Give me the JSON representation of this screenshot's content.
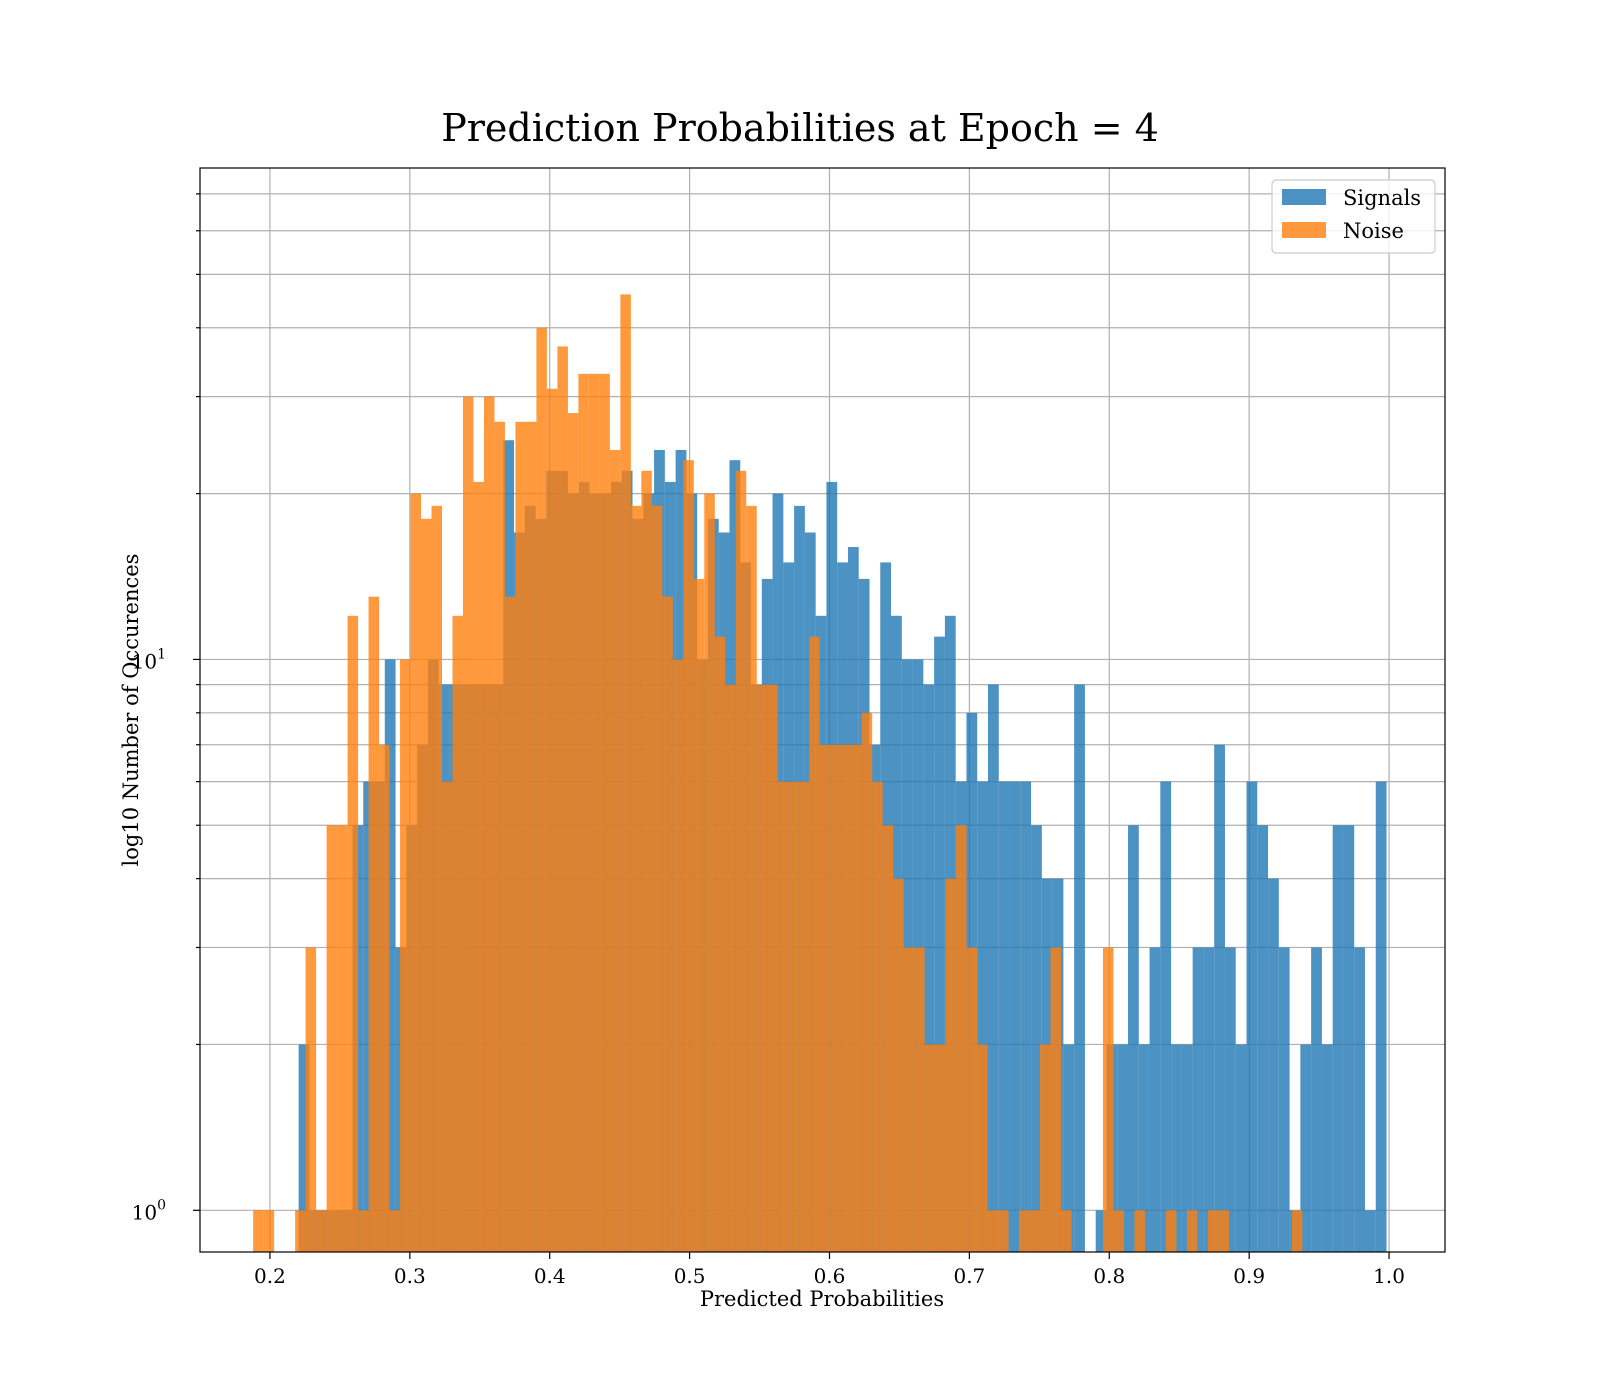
{
  "chart_data": {
    "type": "bar",
    "title": "Prediction Probabilities at Epoch = 4",
    "xlabel": "Predicted Probabilities",
    "ylabel": "log10 Number of Occurences",
    "yscale": "log",
    "xlim": [
      0.15,
      1.04
    ],
    "ylim": [
      0.84,
      78
    ],
    "x_ticks": [
      0.2,
      0.3,
      0.4,
      0.5,
      0.6,
      0.7,
      0.8,
      0.9,
      1.0
    ],
    "x_tick_labels": [
      "0.2",
      "0.3",
      "0.4",
      "0.5",
      "0.6",
      "0.7",
      "0.8",
      "0.9",
      "1.0"
    ],
    "y_major_ticks": [
      1,
      10
    ],
    "y_tick_labels": [
      {
        "base": "10",
        "exp": "0"
      },
      {
        "base": "10",
        "exp": "1"
      }
    ],
    "grid": true,
    "legend": "top-right",
    "bar_alpha": 0.8,
    "series": [
      {
        "name": "Signals",
        "color": "#1f77b4",
        "bins": [
          [
            0.2205,
            0.2282,
            2
          ],
          [
            0.2282,
            0.2359,
            1
          ],
          [
            0.2359,
            0.2436,
            1
          ],
          [
            0.2436,
            0.2513,
            1
          ],
          [
            0.2513,
            0.259,
            1
          ],
          [
            0.259,
            0.2667,
            5
          ],
          [
            0.2667,
            0.2744,
            6
          ],
          [
            0.2744,
            0.2821,
            6
          ],
          [
            0.2821,
            0.2898,
            10
          ],
          [
            0.2898,
            0.2975,
            3
          ],
          [
            0.2975,
            0.3052,
            5
          ],
          [
            0.3052,
            0.3129,
            7
          ],
          [
            0.3129,
            0.3206,
            10
          ],
          [
            0.3206,
            0.3283,
            9
          ],
          [
            0.3283,
            0.336,
            9
          ],
          [
            0.336,
            0.3437,
            9
          ],
          [
            0.3437,
            0.3514,
            9
          ],
          [
            0.3514,
            0.3591,
            9
          ],
          [
            0.3591,
            0.3668,
            9
          ],
          [
            0.3668,
            0.3745,
            25
          ],
          [
            0.3745,
            0.3822,
            17
          ],
          [
            0.3822,
            0.3899,
            19
          ],
          [
            0.3899,
            0.3976,
            18
          ],
          [
            0.3976,
            0.4053,
            22
          ],
          [
            0.4053,
            0.413,
            22
          ],
          [
            0.413,
            0.4207,
            20
          ],
          [
            0.4207,
            0.4284,
            21
          ],
          [
            0.4284,
            0.4361,
            20
          ],
          [
            0.4361,
            0.4438,
            20
          ],
          [
            0.4438,
            0.4515,
            21
          ],
          [
            0.4515,
            0.4592,
            22
          ],
          [
            0.4592,
            0.4669,
            18
          ],
          [
            0.4669,
            0.4746,
            20
          ],
          [
            0.4746,
            0.4823,
            24
          ],
          [
            0.4823,
            0.49,
            21
          ],
          [
            0.49,
            0.4977,
            24
          ],
          [
            0.4977,
            0.5054,
            20
          ],
          [
            0.5054,
            0.5131,
            10
          ],
          [
            0.5131,
            0.5208,
            18
          ],
          [
            0.5208,
            0.5285,
            17
          ],
          [
            0.5285,
            0.5362,
            23
          ],
          [
            0.5362,
            0.5439,
            15
          ],
          [
            0.5439,
            0.5516,
            9
          ],
          [
            0.5516,
            0.5593,
            14
          ],
          [
            0.5593,
            0.567,
            20
          ],
          [
            0.567,
            0.5747,
            15
          ],
          [
            0.5747,
            0.5824,
            19
          ],
          [
            0.5824,
            0.5901,
            17
          ],
          [
            0.5901,
            0.5978,
            12
          ],
          [
            0.5978,
            0.6055,
            21
          ],
          [
            0.6055,
            0.6132,
            15
          ],
          [
            0.6132,
            0.6209,
            16
          ],
          [
            0.6209,
            0.6286,
            14
          ],
          [
            0.6286,
            0.6363,
            7
          ],
          [
            0.6363,
            0.644,
            15
          ],
          [
            0.644,
            0.6517,
            12
          ],
          [
            0.6517,
            0.6594,
            10
          ],
          [
            0.6594,
            0.6671,
            10
          ],
          [
            0.6671,
            0.6748,
            9
          ],
          [
            0.6748,
            0.6825,
            11
          ],
          [
            0.6825,
            0.6902,
            12
          ],
          [
            0.6902,
            0.6979,
            6
          ],
          [
            0.6979,
            0.7056,
            8
          ],
          [
            0.7056,
            0.7133,
            6
          ],
          [
            0.7133,
            0.721,
            9
          ],
          [
            0.721,
            0.7287,
            6
          ],
          [
            0.7287,
            0.7364,
            6
          ],
          [
            0.7364,
            0.7441,
            6
          ],
          [
            0.7441,
            0.7518,
            5
          ],
          [
            0.7518,
            0.7595,
            4
          ],
          [
            0.7595,
            0.7672,
            4
          ],
          [
            0.7672,
            0.7749,
            2
          ],
          [
            0.7749,
            0.7826,
            9
          ],
          [
            0.7826,
            0.7903,
            0
          ],
          [
            0.7903,
            0.798,
            1
          ],
          [
            0.798,
            0.8057,
            2
          ],
          [
            0.8057,
            0.8134,
            2
          ],
          [
            0.8134,
            0.8211,
            5
          ],
          [
            0.8211,
            0.8288,
            2
          ],
          [
            0.8288,
            0.8365,
            3
          ],
          [
            0.8365,
            0.8442,
            6
          ],
          [
            0.8442,
            0.8519,
            2
          ],
          [
            0.8519,
            0.8596,
            2
          ],
          [
            0.8596,
            0.8673,
            3
          ],
          [
            0.8673,
            0.875,
            3
          ],
          [
            0.875,
            0.8827,
            7
          ],
          [
            0.8827,
            0.8904,
            3
          ],
          [
            0.8904,
            0.8981,
            2
          ],
          [
            0.8981,
            0.9058,
            6
          ],
          [
            0.9058,
            0.9135,
            5
          ],
          [
            0.9135,
            0.9212,
            4
          ],
          [
            0.9212,
            0.9289,
            3
          ],
          [
            0.9289,
            0.9366,
            1
          ],
          [
            0.9366,
            0.9443,
            2
          ],
          [
            0.9443,
            0.952,
            3
          ],
          [
            0.952,
            0.9597,
            2
          ],
          [
            0.9597,
            0.9674,
            5
          ],
          [
            0.9674,
            0.9751,
            5
          ],
          [
            0.9751,
            0.9828,
            3
          ],
          [
            0.9828,
            0.9905,
            1
          ],
          [
            0.9905,
            0.9982,
            6
          ]
        ]
      },
      {
        "name": "Noise",
        "color": "#ff7f0e",
        "bins": [
          [
            0.188,
            0.1955,
            1
          ],
          [
            0.1955,
            0.203,
            1
          ],
          [
            0.218,
            0.2255,
            1
          ],
          [
            0.2255,
            0.233,
            3
          ],
          [
            0.233,
            0.2405,
            1
          ],
          [
            0.2405,
            0.248,
            5
          ],
          [
            0.248,
            0.2555,
            5
          ],
          [
            0.2555,
            0.263,
            12
          ],
          [
            0.263,
            0.2705,
            1
          ],
          [
            0.2705,
            0.278,
            13
          ],
          [
            0.278,
            0.2855,
            7
          ],
          [
            0.2855,
            0.293,
            1
          ],
          [
            0.293,
            0.3005,
            10
          ],
          [
            0.3005,
            0.308,
            20
          ],
          [
            0.308,
            0.3155,
            18
          ],
          [
            0.3155,
            0.323,
            19
          ],
          [
            0.323,
            0.3305,
            6
          ],
          [
            0.3305,
            0.338,
            12
          ],
          [
            0.338,
            0.3455,
            30
          ],
          [
            0.3455,
            0.353,
            21
          ],
          [
            0.353,
            0.3605,
            30
          ],
          [
            0.3605,
            0.368,
            27
          ],
          [
            0.368,
            0.3755,
            13
          ],
          [
            0.3755,
            0.383,
            27
          ],
          [
            0.383,
            0.3905,
            27
          ],
          [
            0.3905,
            0.398,
            40
          ],
          [
            0.398,
            0.4055,
            31
          ],
          [
            0.4055,
            0.413,
            37
          ],
          [
            0.413,
            0.4205,
            28
          ],
          [
            0.4205,
            0.428,
            33
          ],
          [
            0.428,
            0.4355,
            33
          ],
          [
            0.4355,
            0.443,
            33
          ],
          [
            0.443,
            0.4505,
            24
          ],
          [
            0.4505,
            0.458,
            46
          ],
          [
            0.458,
            0.4655,
            19
          ],
          [
            0.4655,
            0.473,
            22
          ],
          [
            0.473,
            0.4805,
            19
          ],
          [
            0.4805,
            0.488,
            13
          ],
          [
            0.488,
            0.4955,
            10
          ],
          [
            0.4955,
            0.503,
            23
          ],
          [
            0.503,
            0.5105,
            14
          ],
          [
            0.5105,
            0.518,
            20
          ],
          [
            0.518,
            0.5255,
            11
          ],
          [
            0.5255,
            0.533,
            9
          ],
          [
            0.533,
            0.5405,
            22
          ],
          [
            0.5405,
            0.548,
            19
          ],
          [
            0.548,
            0.5555,
            9
          ],
          [
            0.5555,
            0.563,
            9
          ],
          [
            0.563,
            0.5705,
            6
          ],
          [
            0.5705,
            0.578,
            6
          ],
          [
            0.578,
            0.5855,
            6
          ],
          [
            0.5855,
            0.593,
            11
          ],
          [
            0.593,
            0.6005,
            7
          ],
          [
            0.6005,
            0.608,
            7
          ],
          [
            0.608,
            0.6155,
            7
          ],
          [
            0.6155,
            0.623,
            7
          ],
          [
            0.623,
            0.6305,
            8
          ],
          [
            0.6305,
            0.638,
            6
          ],
          [
            0.638,
            0.6455,
            5
          ],
          [
            0.6455,
            0.653,
            4
          ],
          [
            0.653,
            0.6605,
            3
          ],
          [
            0.6605,
            0.668,
            3
          ],
          [
            0.668,
            0.6755,
            2
          ],
          [
            0.6755,
            0.683,
            2
          ],
          [
            0.683,
            0.6905,
            4
          ],
          [
            0.6905,
            0.698,
            5
          ],
          [
            0.698,
            0.7055,
            3
          ],
          [
            0.7055,
            0.713,
            2
          ],
          [
            0.713,
            0.7205,
            1
          ],
          [
            0.7205,
            0.728,
            1
          ],
          [
            0.7355,
            0.743,
            1
          ],
          [
            0.743,
            0.7505,
            1
          ],
          [
            0.7505,
            0.758,
            2
          ],
          [
            0.758,
            0.7655,
            3
          ],
          [
            0.7655,
            0.773,
            1
          ],
          [
            0.7955,
            0.803,
            3
          ],
          [
            0.803,
            0.8105,
            1
          ],
          [
            0.818,
            0.8255,
            1
          ],
          [
            0.8405,
            0.848,
            1
          ],
          [
            0.8555,
            0.863,
            1
          ],
          [
            0.8705,
            0.878,
            1
          ],
          [
            0.878,
            0.8855,
            1
          ],
          [
            0.9305,
            0.938,
            1
          ]
        ]
      }
    ]
  }
}
